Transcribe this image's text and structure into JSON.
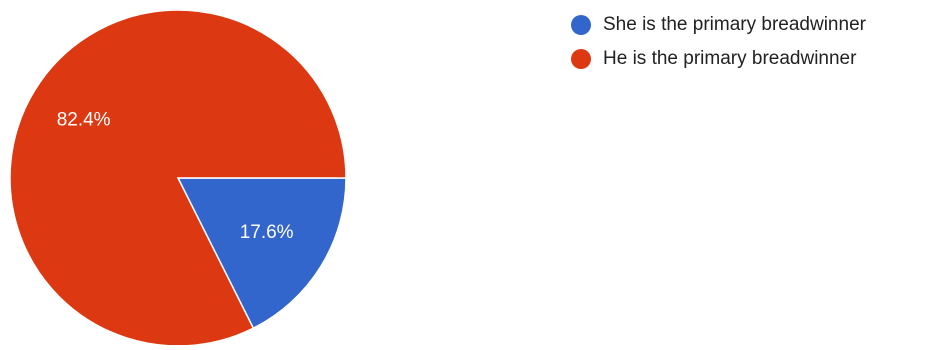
{
  "chart_data": {
    "type": "pie",
    "categories": [
      "She is the primary breadwinner",
      "He is the primary breadwinner"
    ],
    "values": [
      17.6,
      82.4
    ],
    "colors": [
      "#3366cc",
      "#dc3912"
    ],
    "data_labels": [
      "17.6%",
      "82.4%"
    ],
    "legend_position": "right",
    "title": ""
  }
}
